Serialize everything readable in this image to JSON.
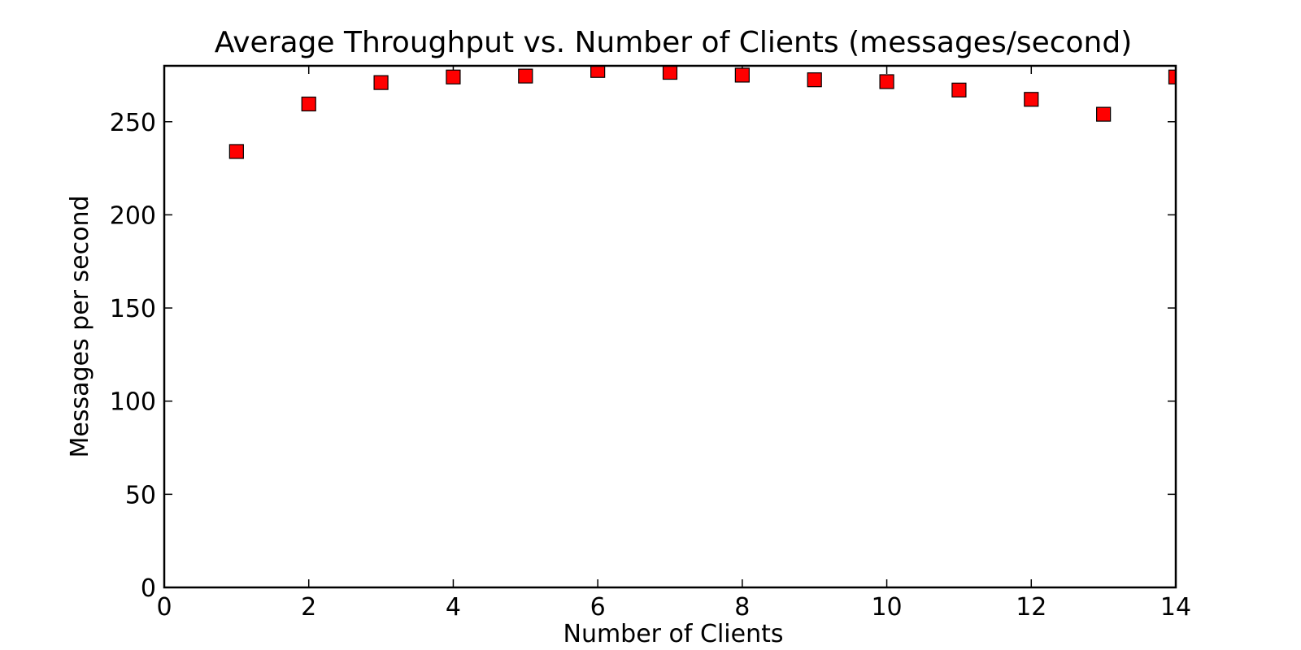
{
  "chart_data": {
    "type": "scatter",
    "title": "Average Throughput vs. Number of Clients (messages/second)",
    "xlabel": "Number of Clients",
    "ylabel": "Messages per second",
    "xlim": [
      0,
      14
    ],
    "ylim": [
      0,
      280
    ],
    "xticks": [
      0,
      2,
      4,
      6,
      8,
      10,
      12,
      14
    ],
    "yticks": [
      0,
      50,
      100,
      150,
      200,
      250
    ],
    "grid": false,
    "marker": "square",
    "marker_color": "#ff0000",
    "series": [
      {
        "x": [
          1,
          2,
          3,
          4,
          5,
          6,
          7,
          8,
          9,
          10,
          11,
          12,
          13,
          14
        ],
        "y": [
          234,
          259.5,
          271,
          274,
          274.5,
          277.5,
          276.5,
          275,
          272.5,
          271.5,
          267,
          262,
          254,
          274
        ]
      }
    ]
  }
}
